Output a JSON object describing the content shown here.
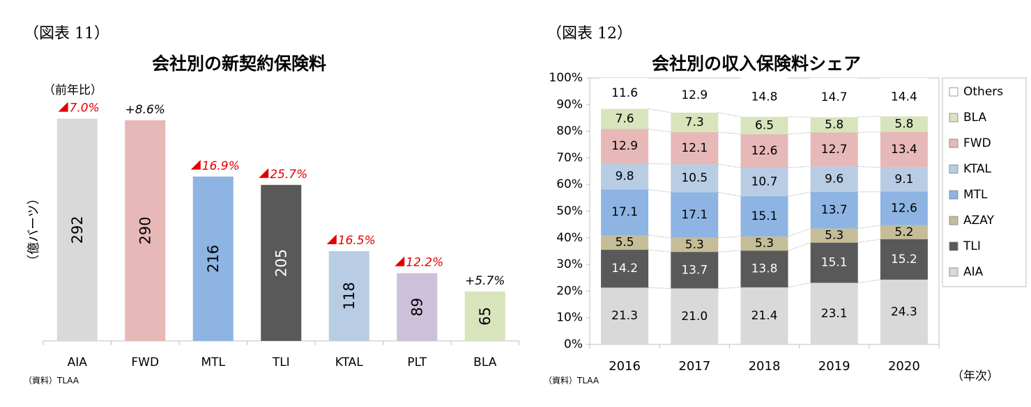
{
  "left": {
    "figure_label": "（図表 11）",
    "source": "（資料）TLAA"
  },
  "right": {
    "figure_label": "（図表 12）",
    "source": "（資料）TLAA"
  },
  "chart_data": [
    {
      "type": "bar",
      "title": "会社別の新契約保険料",
      "ylabel": "（億バーツ）",
      "annotation_header": "（前年比）",
      "categories": [
        "AIA",
        "FWD",
        "MTL",
        "TLI",
        "KTAL",
        "PLT",
        "BLA"
      ],
      "values": [
        292,
        290,
        216,
        205,
        118,
        89,
        65
      ],
      "value_labels": [
        "292",
        "290",
        "216",
        "205",
        "118",
        "89",
        "65"
      ],
      "yoy_labels": [
        "7.0%",
        "+8.6%",
        "16.9%",
        "25.7%",
        "16.5%",
        "12.2%",
        "+5.7%"
      ],
      "yoy_negative": [
        true,
        false,
        true,
        true,
        true,
        true,
        false
      ],
      "bar_colors": [
        "#d9d9d9",
        "#e6b8b7",
        "#8db4e2",
        "#595959",
        "#b8cce4",
        "#ccc0da",
        "#d8e4bc"
      ],
      "ylim": [
        0,
        320
      ],
      "colors": {
        "negative_marker": "#e00000"
      }
    },
    {
      "type": "bar",
      "stacked": "percent",
      "title": "会社別の収入保険料シェア",
      "xlabel": "（年次）",
      "categories": [
        "2016",
        "2017",
        "2018",
        "2019",
        "2020"
      ],
      "ylim": [
        0,
        100
      ],
      "y_ticks": [
        "0%",
        "10%",
        "20%",
        "30%",
        "40%",
        "50%",
        "60%",
        "70%",
        "80%",
        "90%",
        "100%"
      ],
      "series": [
        {
          "name": "AIA",
          "color": "#d9d9d9",
          "values": [
            21.3,
            21.0,
            21.4,
            23.1,
            24.3
          ],
          "labels": [
            "21.3",
            "21.0",
            "21.4",
            "23.1",
            "24.3"
          ],
          "label_color": "#000000"
        },
        {
          "name": "TLI",
          "color": "#595959",
          "values": [
            14.2,
            13.7,
            13.8,
            15.1,
            15.2
          ],
          "labels": [
            "14.2",
            "13.7",
            "13.8",
            "15.1",
            "15.2"
          ],
          "label_color": "#ffffff"
        },
        {
          "name": "AZAY",
          "color": "#c4bd97",
          "values": [
            5.5,
            5.3,
            5.3,
            5.3,
            5.2
          ],
          "labels": [
            "5.5",
            "5.3",
            "5.3",
            "5.3",
            "5.2"
          ],
          "label_color": "#000000"
        },
        {
          "name": "MTL",
          "color": "#8db4e2",
          "values": [
            17.1,
            17.1,
            15.1,
            13.7,
            12.6
          ],
          "labels": [
            "17.1",
            "17.1",
            "15.1",
            "13.7",
            "12.6"
          ],
          "label_color": "#000000"
        },
        {
          "name": "KTAL",
          "color": "#b8cce4",
          "values": [
            9.8,
            10.5,
            10.7,
            9.6,
            9.1
          ],
          "labels": [
            "9.8",
            "10.5",
            "10.7",
            "9.6",
            "9.1"
          ],
          "label_color": "#000000"
        },
        {
          "name": "FWD",
          "color": "#e6b8b7",
          "values": [
            12.9,
            12.1,
            12.6,
            12.7,
            13.4
          ],
          "labels": [
            "12.9",
            "12.1",
            "12.6",
            "12.7",
            "13.4"
          ],
          "label_color": "#000000"
        },
        {
          "name": "BLA",
          "color": "#d8e4bc",
          "values": [
            7.6,
            7.3,
            6.5,
            5.8,
            5.8
          ],
          "labels": [
            "7.6",
            "7.3",
            "6.5",
            "5.8",
            "5.8"
          ],
          "label_color": "#000000"
        },
        {
          "name": "Others",
          "color": "#ffffff",
          "values": [
            11.6,
            12.9,
            14.8,
            14.7,
            14.4
          ],
          "labels": [
            "11.6",
            "12.9",
            "14.8",
            "14.7",
            "14.4"
          ],
          "label_color": "#000000"
        }
      ],
      "legend_order": [
        "Others",
        "BLA",
        "FWD",
        "KTAL",
        "MTL",
        "AZAY",
        "TLI",
        "AIA"
      ],
      "legend": "right",
      "grid": false
    }
  ]
}
